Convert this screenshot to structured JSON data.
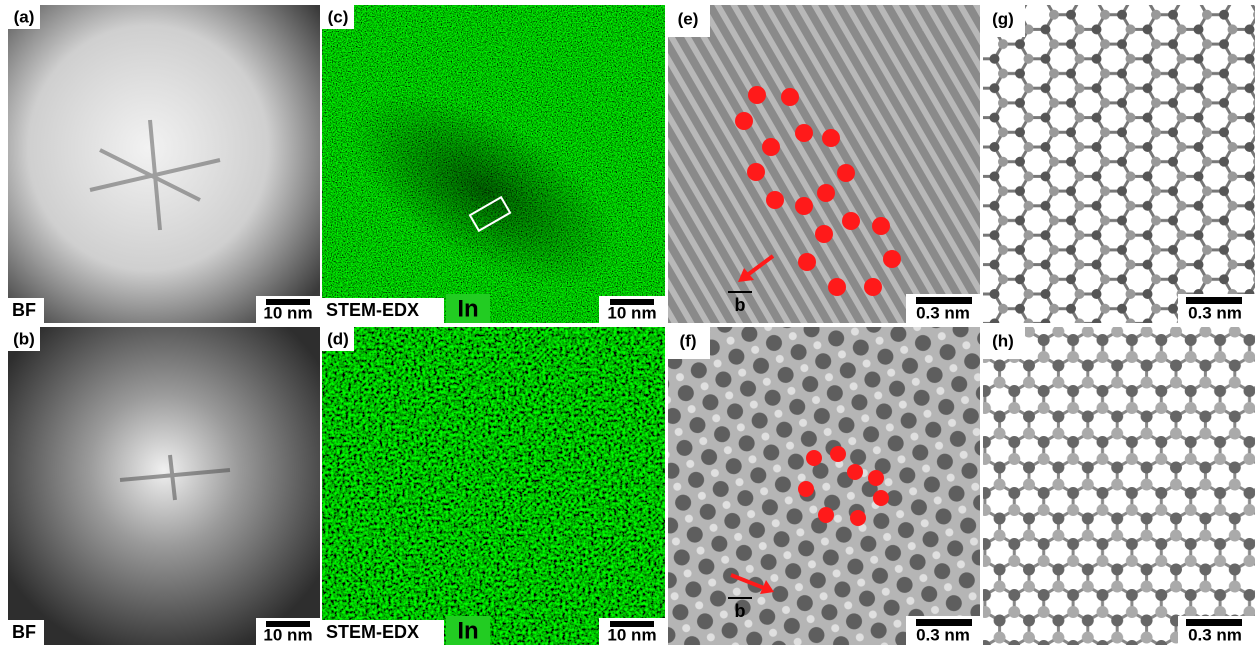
{
  "panels": [
    {
      "label": "(a)",
      "caption": "BF",
      "scale": "10 nm"
    },
    {
      "label": "(b)",
      "caption": "BF",
      "scale": "10 nm"
    },
    {
      "label": "(c)",
      "caption": "STEM-EDX",
      "element": "In",
      "scale": "10 nm"
    },
    {
      "label": "(d)",
      "caption": "STEM-EDX",
      "element": "In",
      "scale": "10 nm"
    },
    {
      "label": "(e)",
      "vector": "b",
      "scale": "0.3 nm"
    },
    {
      "label": "(f)",
      "vector": "b",
      "scale": "0.3 nm"
    },
    {
      "label": "(g)",
      "scale": "0.3 nm"
    },
    {
      "label": "(h)",
      "scale": "0.3 nm"
    }
  ]
}
